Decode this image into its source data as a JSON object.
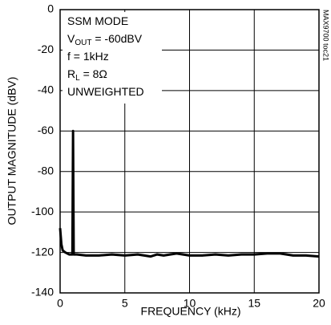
{
  "chart_data": {
    "type": "line",
    "xlabel": "FREQUENCY (kHz)",
    "ylabel": "OUTPUT MAGNITUDE (dBV)",
    "side_label": "MAX9700 toc21",
    "annotations": [
      {
        "text": "SSM MODE"
      },
      {
        "text": "V",
        "sub": "OUT",
        "after": " = -60dBV"
      },
      {
        "text": "f = 1kHz"
      },
      {
        "text": "R",
        "sub": "L",
        "after": " = 8Ω"
      },
      {
        "text": "UNWEIGHTED"
      }
    ],
    "xlim": [
      0,
      20
    ],
    "xticks": [
      0,
      5,
      10,
      15,
      20
    ],
    "ylim": [
      -140,
      0
    ],
    "yticks": [
      0,
      -20,
      -40,
      -60,
      -80,
      -100,
      -120,
      -140
    ],
    "grid": true,
    "series": [
      {
        "color": "#000000",
        "x": [
          0,
          0.1,
          0.2,
          0.4,
          0.7,
          0.95,
          1.0,
          1.05,
          1.3,
          2,
          3,
          4,
          5,
          6,
          7,
          7.5,
          8,
          9,
          10,
          11,
          12,
          13,
          14,
          15,
          16,
          17,
          18,
          19,
          20
        ],
        "values": [
          -108,
          -116,
          -119,
          -120,
          -121,
          -121,
          -60,
          -121,
          -121,
          -121.5,
          -121.5,
          -121,
          -121.5,
          -121,
          -122,
          -121,
          -121.5,
          -120.5,
          -121.5,
          -121.5,
          -121,
          -121.5,
          -121,
          -121,
          -120.5,
          -120.5,
          -121.5,
          -121.5,
          -122
        ]
      }
    ]
  }
}
